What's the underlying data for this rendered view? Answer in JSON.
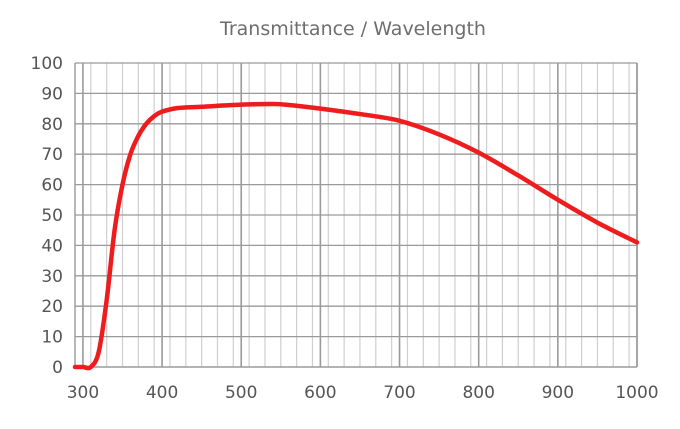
{
  "chart_data": {
    "type": "line",
    "title": "Transmittance / Wavelength",
    "xlabel": "",
    "ylabel": "",
    "xlim": [
      290,
      1000
    ],
    "ylim": [
      0,
      100
    ],
    "x_ticks": [
      300,
      400,
      500,
      600,
      700,
      800,
      900,
      1000
    ],
    "y_ticks": [
      0,
      10,
      20,
      30,
      40,
      50,
      60,
      70,
      80,
      90,
      100
    ],
    "minor_x_step": 20,
    "major_x_step": 100,
    "grid": true,
    "legend": "none",
    "colors": {
      "line": "#ee1c1c",
      "minor_grid": "#cfcfcf",
      "major_grid": "#9a9a9a",
      "text": "#555555",
      "title": "#6e6e6e"
    },
    "series": [
      {
        "name": "Transmittance",
        "x": [
          290,
          300,
          310,
          320,
          330,
          340,
          350,
          360,
          370,
          380,
          390,
          400,
          420,
          450,
          500,
          540,
          560,
          600,
          650,
          700,
          750,
          800,
          850,
          900,
          950,
          1000
        ],
        "y": [
          0,
          0,
          0,
          5,
          22,
          45,
          60,
          70,
          76,
          80,
          82.5,
          84,
          85.2,
          85.6,
          86.3,
          86.5,
          86.2,
          85,
          83.2,
          81,
          76.5,
          70.5,
          63,
          55,
          47.5,
          41
        ]
      }
    ]
  }
}
